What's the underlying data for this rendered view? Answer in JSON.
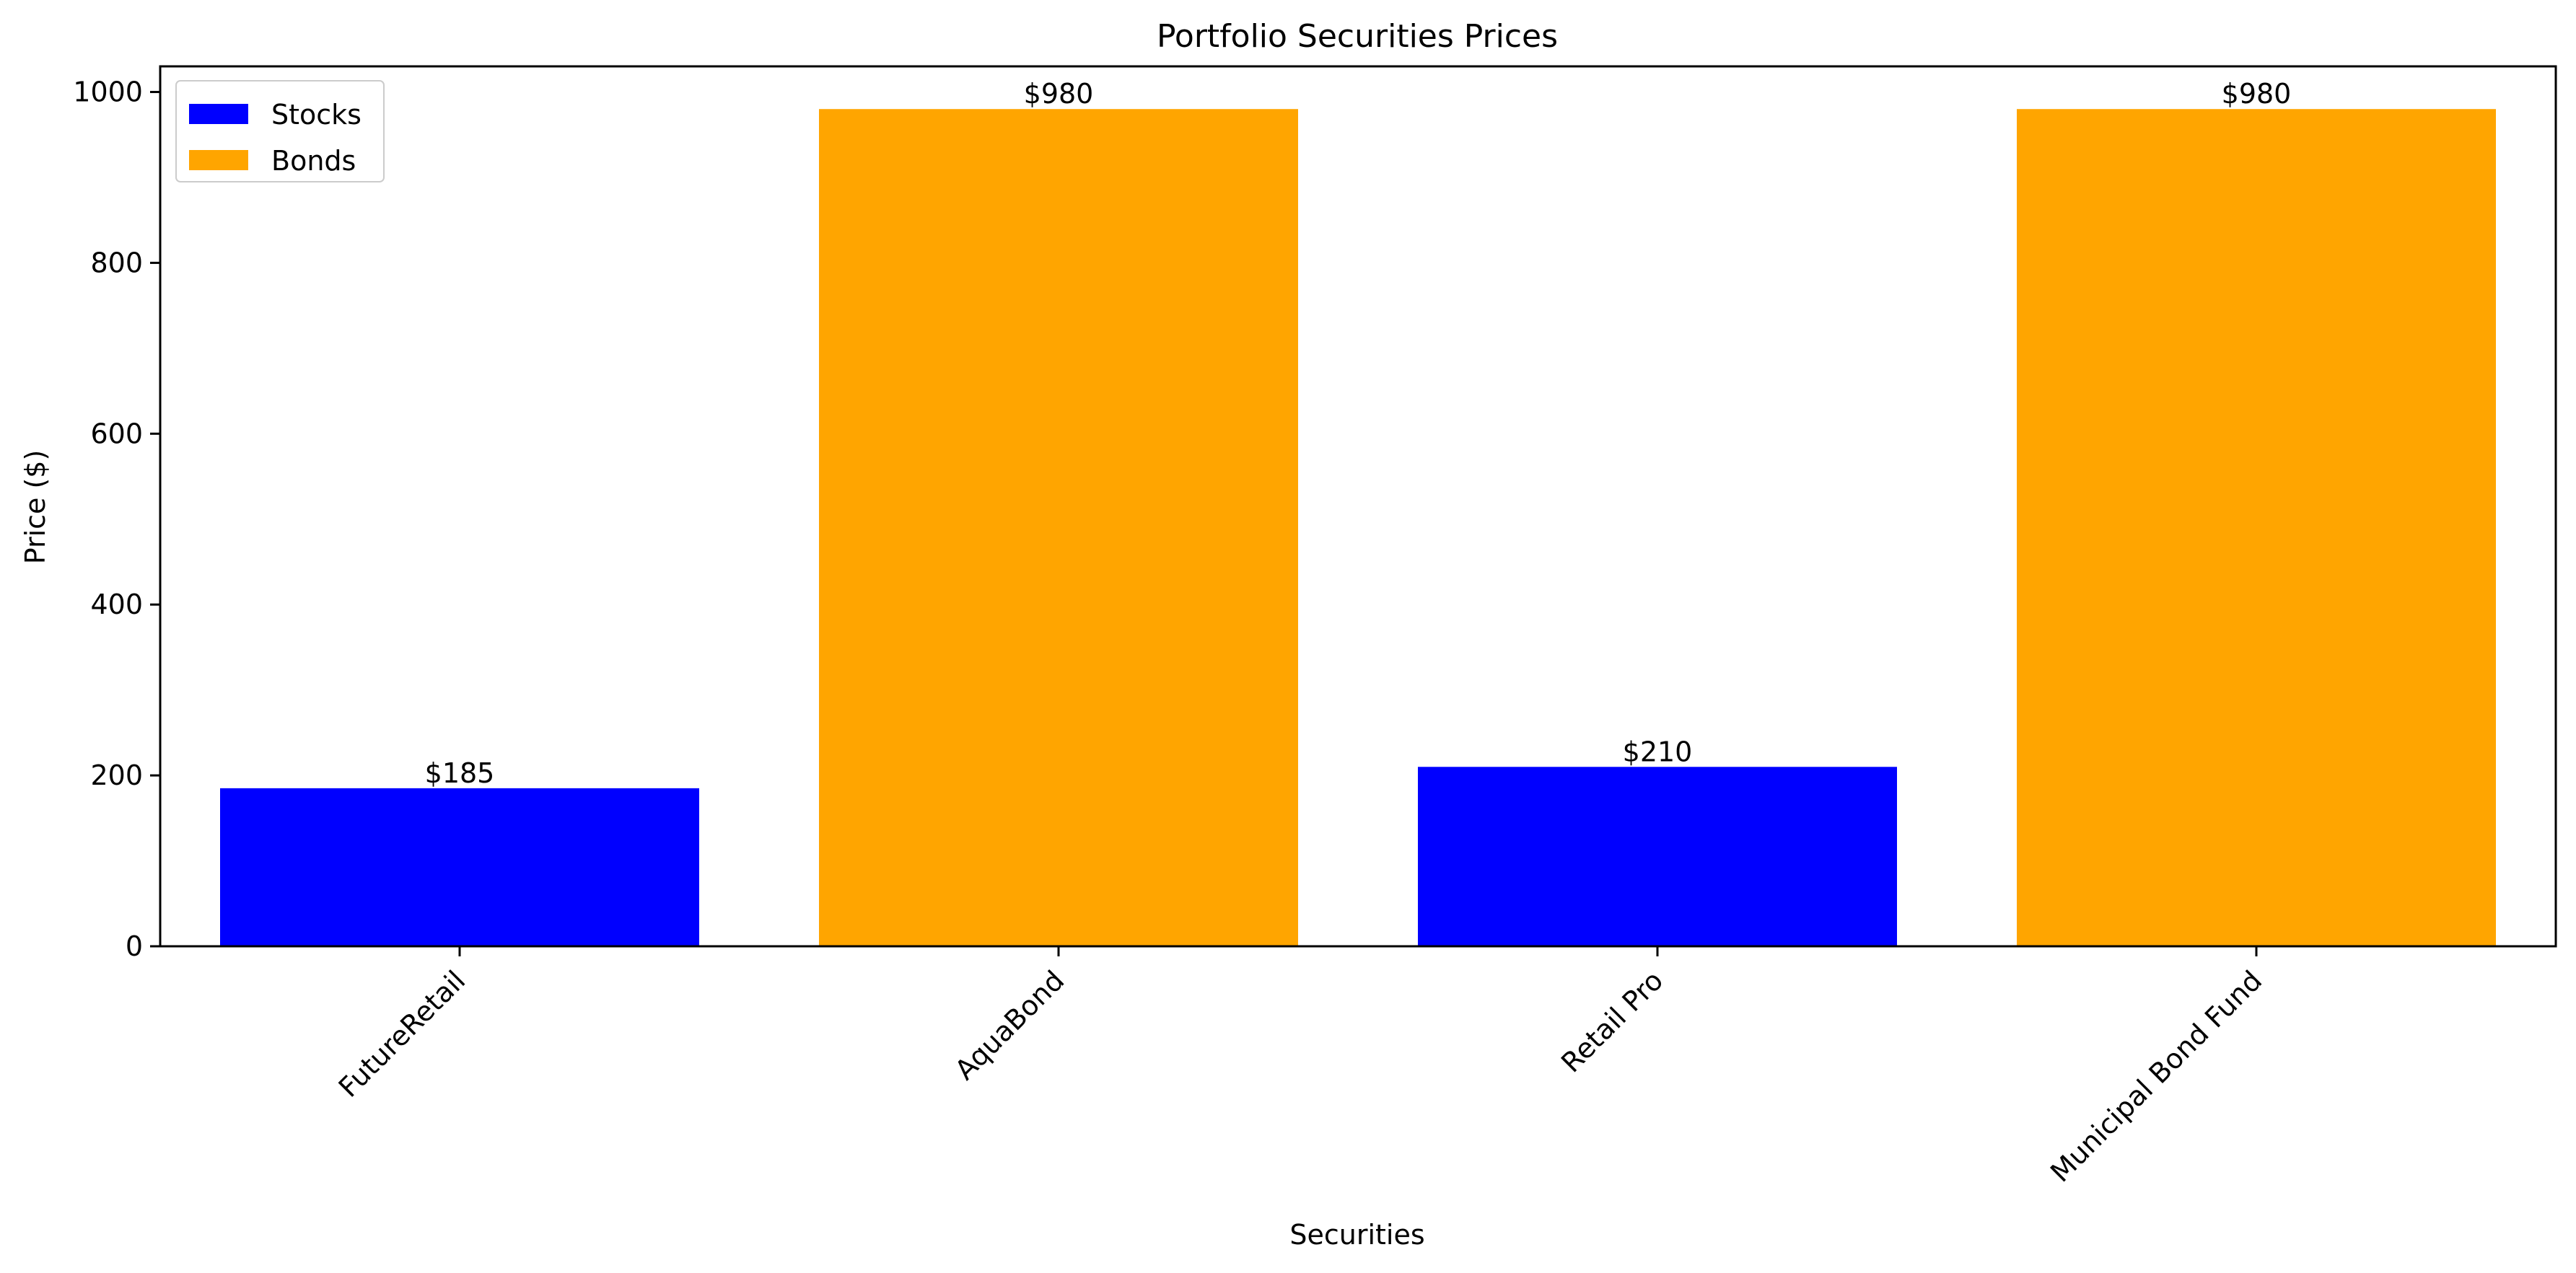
{
  "chart_data": {
    "type": "bar",
    "title": "Portfolio Securities Prices",
    "xlabel": "Securities",
    "ylabel": "Price ($)",
    "categories": [
      "FutureRetail",
      "AquaBond",
      "Retail Pro",
      "Municipal Bond Fund"
    ],
    "values": [
      185,
      980,
      210,
      980
    ],
    "bar_types": [
      "Stocks",
      "Bonds",
      "Stocks",
      "Bonds"
    ],
    "data_labels": [
      "$185",
      "$980",
      "$210",
      "$980"
    ],
    "ylim": [
      0,
      1030
    ],
    "yticks": [
      0,
      200,
      400,
      600,
      800,
      1000
    ],
    "legend": {
      "placement": "top-left",
      "entries": [
        {
          "name": "Stocks",
          "color": "#0000ff"
        },
        {
          "name": "Bonds",
          "color": "#ffa500"
        }
      ]
    }
  }
}
